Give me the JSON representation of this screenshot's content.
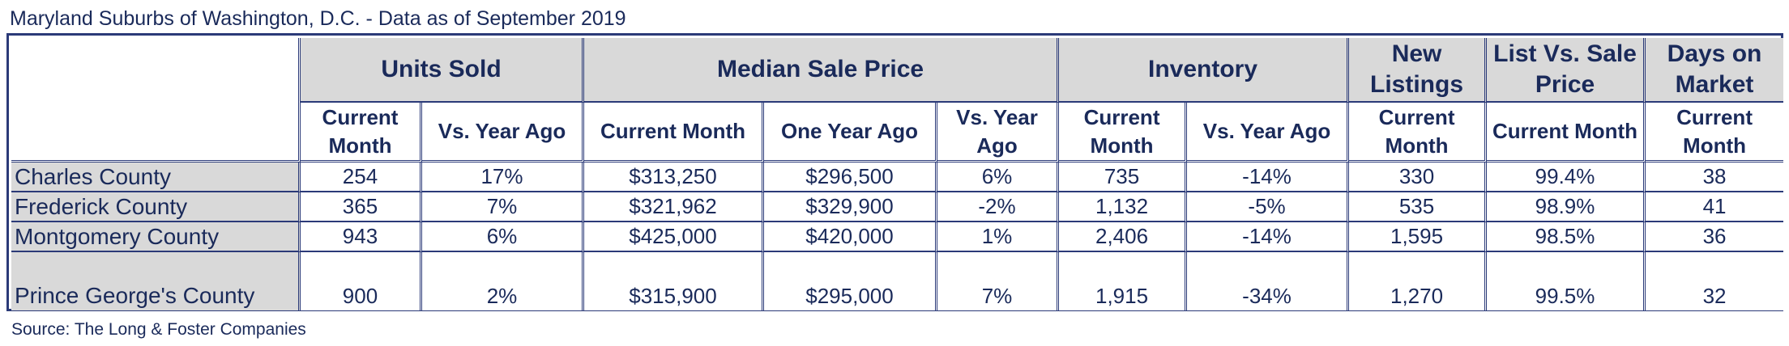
{
  "title": "Maryland Suburbs of Washington, D.C. - Data as of September 2019",
  "source": "Source: The Long & Foster Companies",
  "groups": {
    "units_sold": "Units Sold",
    "median_sale_price": "Median Sale Price",
    "inventory": "Inventory",
    "new_listings": "New Listings",
    "list_vs_sale": "List Vs. Sale Price",
    "days_on_market": "Days on Market"
  },
  "subheaders": {
    "units_current": "Current Month",
    "units_vs": "Vs. Year Ago",
    "price_current": "Current Month",
    "price_year_ago": "One Year Ago",
    "price_vs": "Vs. Year Ago",
    "inv_current": "Current Month",
    "inv_vs": "Vs. Year Ago",
    "new_current": "Current Month",
    "list_current": "Current Month",
    "days_current": "Current Month"
  },
  "rows": [
    {
      "county": "Charles County",
      "units": "254",
      "units_vs": "17%",
      "price": "$313,250",
      "price_ya": "$296,500",
      "price_vs": "6%",
      "inv": "735",
      "inv_vs": "-14%",
      "new": "330",
      "list_vs_sale": "99.4%",
      "days": "38"
    },
    {
      "county": "Frederick County",
      "units": "365",
      "units_vs": "7%",
      "price": "$321,962",
      "price_ya": "$329,900",
      "price_vs": "-2%",
      "inv": "1,132",
      "inv_vs": "-5%",
      "new": "535",
      "list_vs_sale": "98.9%",
      "days": "41"
    },
    {
      "county": "Montgomery County",
      "units": "943",
      "units_vs": "6%",
      "price": "$425,000",
      "price_ya": "$420,000",
      "price_vs": "1%",
      "inv": "2,406",
      "inv_vs": "-14%",
      "new": "1,595",
      "list_vs_sale": "98.5%",
      "days": "36"
    },
    {
      "county": "Prince George's County",
      "units": "900",
      "units_vs": "2%",
      "price": "$315,900",
      "price_ya": "$295,000",
      "price_vs": "7%",
      "inv": "1,915",
      "inv_vs": "-34%",
      "new": "1,270",
      "list_vs_sale": "99.5%",
      "days": "32"
    }
  ]
}
